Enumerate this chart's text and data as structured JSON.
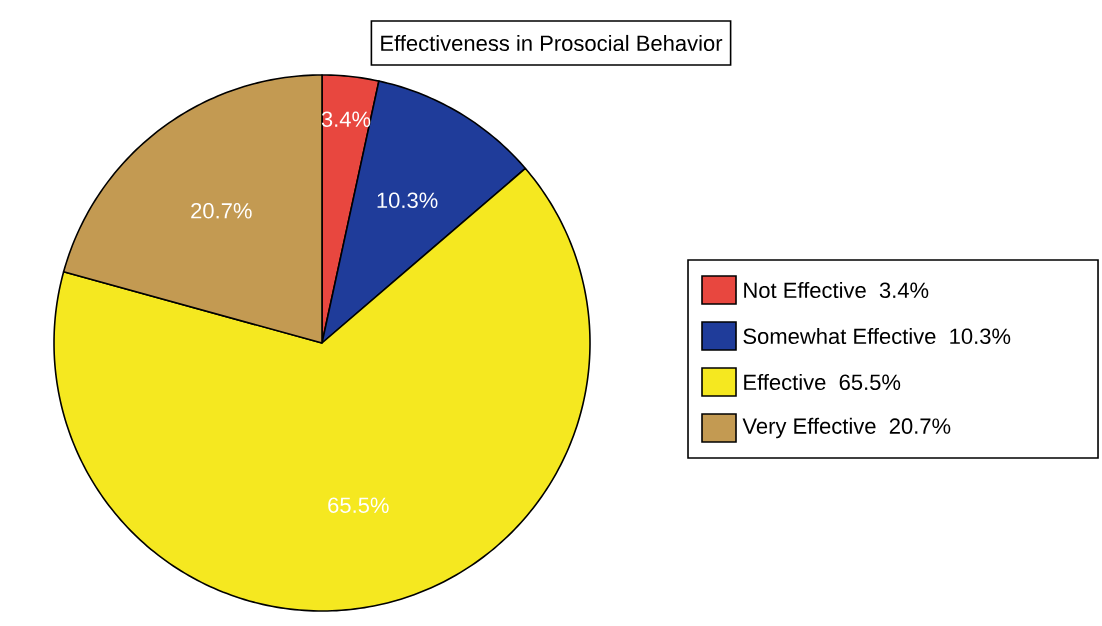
{
  "chart_data": {
    "type": "pie",
    "title": "Effectiveness in Prosocial Behavior",
    "categories": [
      "Not Effective",
      "Somewhat Effective",
      "Effective",
      "Very Effective"
    ],
    "values": [
      3.4,
      10.3,
      65.5,
      20.7
    ],
    "value_labels": [
      "3.4%",
      "10.3%",
      "65.5%",
      "20.7%"
    ],
    "colors": [
      "#e8473f",
      "#1f3c9a",
      "#f5e820",
      "#c39a52"
    ],
    "legend": "right"
  }
}
